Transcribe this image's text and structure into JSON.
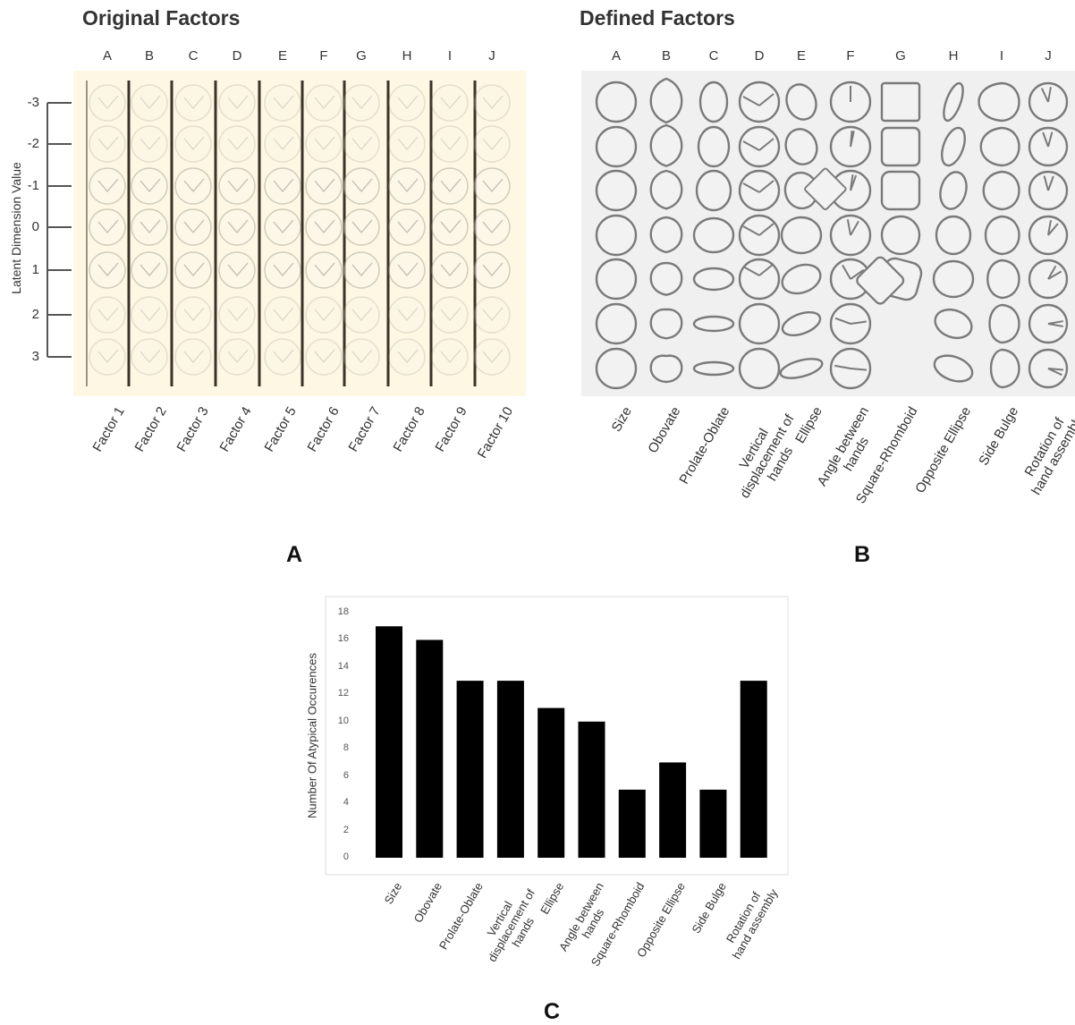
{
  "panel_a": {
    "title": "Original Factors",
    "letter": "A",
    "columns": [
      "A",
      "B",
      "C",
      "D",
      "E",
      "F",
      "G",
      "H",
      "I",
      "J"
    ],
    "y_axis_label": "Latent Dimension Value",
    "latent_values": [
      "-3",
      "-2",
      "-1",
      "0",
      "1",
      "2",
      "3"
    ],
    "factor_labels": [
      "Factor 1",
      "Factor 2",
      "Factor 3",
      "Factor 4",
      "Factor 5",
      "Factor 6",
      "Factor 7",
      "Factor 8",
      "Factor 9",
      "Factor 10"
    ],
    "background_color": "#fdf7e3"
  },
  "panel_b": {
    "title": "Defined Factors",
    "letter": "B",
    "columns": [
      "A",
      "B",
      "C",
      "D",
      "E",
      "F",
      "G",
      "H",
      "I",
      "J"
    ],
    "factor_labels": [
      "Size",
      "Obovate",
      "Prolate-Oblate",
      "Vertical displacement of hands",
      "Ellipse",
      "Angle between hands",
      "Square-Rhomboid",
      "Opposite Ellipse",
      "Side Bulge",
      "Rotation of hand assembly"
    ],
    "background_color": "#f0f0f0"
  },
  "panel_c": {
    "letter": "C"
  },
  "chart_data": {
    "type": "bar",
    "categories": [
      "Size",
      "Obovate",
      "Prolate-Oblate",
      "Vertical displacement of hands",
      "Ellipse",
      "Angle between hands",
      "Square-Rhomboid",
      "Opposite Ellipse",
      "Side Bulge",
      "Rotation of hand assembly"
    ],
    "values": [
      17,
      16,
      13,
      13,
      11,
      10,
      5,
      7,
      5,
      13
    ],
    "title": "",
    "xlabel": "",
    "ylabel": "Number Of Atypical Occurences",
    "ylim": [
      0,
      18
    ],
    "yticks": [
      "0",
      "2",
      "4",
      "6",
      "8",
      "10",
      "12",
      "14",
      "16",
      "18"
    ],
    "bar_color": "#000000",
    "grid": false
  }
}
